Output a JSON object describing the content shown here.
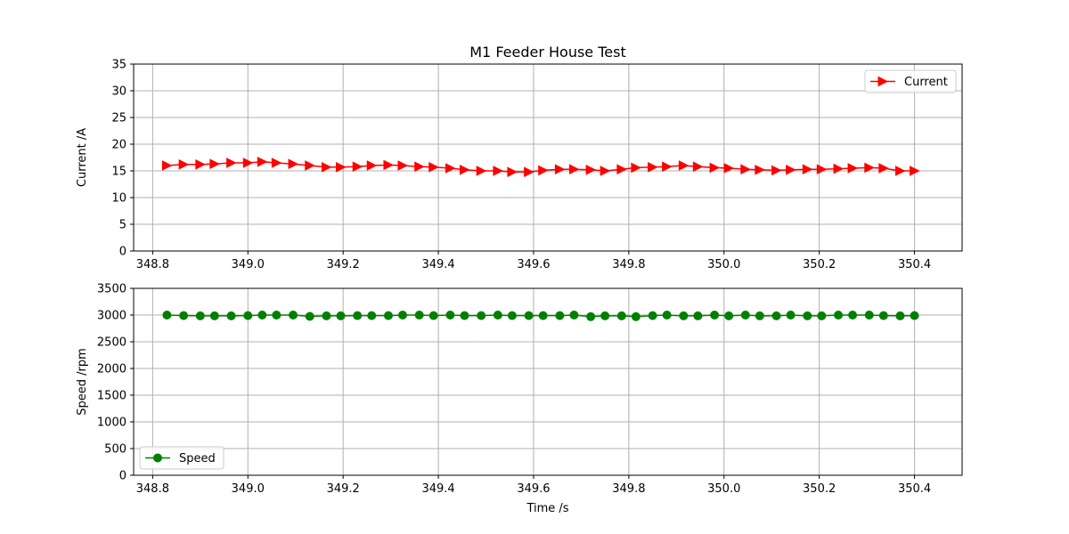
{
  "chart_data": [
    {
      "type": "line",
      "title": "M1 Feeder House Test",
      "xlabel": "",
      "ylabel": "Current /A",
      "xlim": [
        348.76,
        350.5
      ],
      "ylim": [
        0,
        35
      ],
      "xticks": [
        348.8,
        349.0,
        349.2,
        349.4,
        349.6,
        349.8,
        350.0,
        350.2,
        350.4
      ],
      "xtick_labels": [
        "348.8",
        "349.0",
        "349.2",
        "349.4",
        "349.6",
        "349.8",
        "350.0",
        "350.2",
        "350.4"
      ],
      "yticks": [
        0,
        5,
        10,
        15,
        20,
        25,
        30,
        35
      ],
      "ytick_labels": [
        "0",
        "5",
        "10",
        "15",
        "20",
        "25",
        "30",
        "35"
      ],
      "grid": true,
      "legend_position": "top-right",
      "series": [
        {
          "name": "Current",
          "color": "#ff0000",
          "marker": "triangle-right",
          "x": [
            348.83,
            348.865,
            348.9,
            348.93,
            348.965,
            349.0,
            349.03,
            349.06,
            349.095,
            349.13,
            349.165,
            349.195,
            349.23,
            349.26,
            349.295,
            349.325,
            349.36,
            349.39,
            349.425,
            349.455,
            349.49,
            349.525,
            349.555,
            349.59,
            349.62,
            349.655,
            349.685,
            349.72,
            349.75,
            349.785,
            349.815,
            349.85,
            349.88,
            349.915,
            349.945,
            349.98,
            350.01,
            350.045,
            350.075,
            350.11,
            350.14,
            350.175,
            350.205,
            350.24,
            350.27,
            350.305,
            350.335,
            350.37,
            350.4
          ],
          "values": [
            16.0,
            16.2,
            16.2,
            16.3,
            16.5,
            16.5,
            16.7,
            16.5,
            16.3,
            16.0,
            15.7,
            15.7,
            15.8,
            16.0,
            16.1,
            16.0,
            15.8,
            15.7,
            15.5,
            15.2,
            15.0,
            15.0,
            14.8,
            14.8,
            15.1,
            15.3,
            15.3,
            15.2,
            15.0,
            15.3,
            15.6,
            15.7,
            15.8,
            16.0,
            15.8,
            15.6,
            15.5,
            15.3,
            15.2,
            15.1,
            15.2,
            15.3,
            15.3,
            15.4,
            15.5,
            15.6,
            15.5,
            15.0,
            15.0
          ]
        }
      ]
    },
    {
      "type": "line",
      "title": "",
      "xlabel": "Time /s",
      "ylabel": "Speed /rpm",
      "xlim": [
        348.76,
        350.5
      ],
      "ylim": [
        0,
        3500
      ],
      "xticks": [
        348.8,
        349.0,
        349.2,
        349.4,
        349.6,
        349.8,
        350.0,
        350.2,
        350.4
      ],
      "xtick_labels": [
        "348.8",
        "349.0",
        "349.2",
        "349.4",
        "349.6",
        "349.8",
        "350.0",
        "350.2",
        "350.4"
      ],
      "yticks": [
        0,
        500,
        1000,
        1500,
        2000,
        2500,
        3000,
        3500
      ],
      "ytick_labels": [
        "0",
        "500",
        "1000",
        "1500",
        "2000",
        "2500",
        "3000",
        "3500"
      ],
      "grid": true,
      "legend_position": "bottom-left",
      "series": [
        {
          "name": "Speed",
          "color": "#008000",
          "marker": "circle",
          "x": [
            348.83,
            348.865,
            348.9,
            348.93,
            348.965,
            349.0,
            349.03,
            349.06,
            349.095,
            349.13,
            349.165,
            349.195,
            349.23,
            349.26,
            349.295,
            349.325,
            349.36,
            349.39,
            349.425,
            349.455,
            349.49,
            349.525,
            349.555,
            349.59,
            349.62,
            349.655,
            349.685,
            349.72,
            349.75,
            349.785,
            349.815,
            349.85,
            349.88,
            349.915,
            349.945,
            349.98,
            350.01,
            350.045,
            350.075,
            350.11,
            350.14,
            350.175,
            350.205,
            350.24,
            350.27,
            350.305,
            350.335,
            350.37,
            350.4
          ],
          "values": [
            3000,
            2990,
            2985,
            2985,
            2985,
            2990,
            3000,
            3000,
            3000,
            2975,
            2985,
            2985,
            2990,
            2990,
            2990,
            3000,
            3000,
            2990,
            3000,
            2990,
            2990,
            3000,
            2990,
            2990,
            2990,
            2990,
            3000,
            2970,
            2985,
            2985,
            2970,
            2990,
            3000,
            2985,
            2985,
            3000,
            2985,
            3000,
            2985,
            2985,
            3000,
            2985,
            2985,
            3000,
            3000,
            3000,
            2990,
            2985,
            2990
          ]
        }
      ]
    }
  ]
}
